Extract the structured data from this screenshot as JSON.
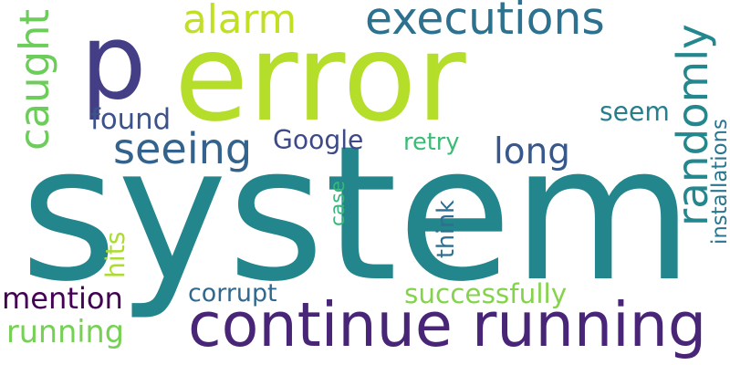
{
  "words": [
    {
      "text": "system",
      "color": "#23868c"
    },
    {
      "text": "error",
      "color": "#b5de2b"
    },
    {
      "text": "p",
      "color": "#433e85"
    },
    {
      "text": "continue running",
      "color": "#482576"
    },
    {
      "text": "executions",
      "color": "#2c718e"
    },
    {
      "text": "alarm",
      "color": "#c2df23"
    },
    {
      "text": "seeing",
      "color": "#33638d"
    },
    {
      "text": "caught",
      "color": "#6ccd5a"
    },
    {
      "text": "randomly",
      "color": "#24878e"
    },
    {
      "text": "long",
      "color": "#38578c"
    },
    {
      "text": "installations",
      "color": "#2b758e"
    },
    {
      "text": "Google",
      "color": "#3e4989"
    },
    {
      "text": "found",
      "color": "#3b528b"
    },
    {
      "text": "seem",
      "color": "#277f8e"
    },
    {
      "text": "retry",
      "color": "#3bbb75"
    },
    {
      "text": "case",
      "color": "#35b779"
    },
    {
      "text": "think",
      "color": "#2e6e8e"
    },
    {
      "text": "hits",
      "color": "#addc30"
    },
    {
      "text": "mention",
      "color": "#440154"
    },
    {
      "text": "corrupt",
      "color": "#31688e"
    },
    {
      "text": "successfully",
      "color": "#84d44b"
    },
    {
      "text": "running",
      "color": "#75d054"
    }
  ]
}
